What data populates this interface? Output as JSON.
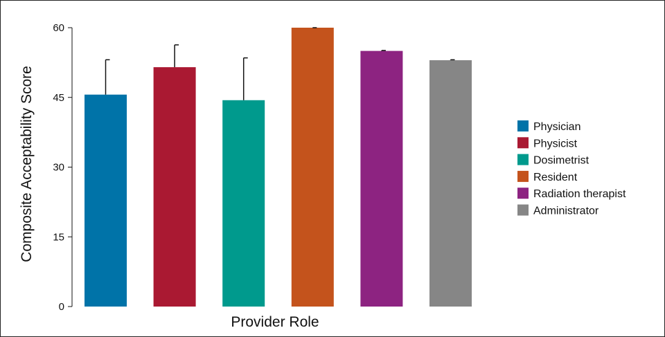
{
  "chart_data": {
    "type": "bar",
    "title": "",
    "xlabel": "Provider Role",
    "ylabel": "Composite Acceptability Score",
    "ylim": [
      0,
      60
    ],
    "yticks": [
      0,
      15,
      30,
      45,
      60
    ],
    "grid": false,
    "legend_position": "right",
    "categories": [
      "Physician",
      "Physicist",
      "Dosimetrist",
      "Resident",
      "Radiation therapist",
      "Administrator"
    ],
    "values": [
      45.6,
      51.5,
      44.4,
      60.0,
      55.0,
      53.0
    ],
    "error_upper": [
      53.1,
      56.3,
      53.5,
      60.0,
      55.1,
      53.1
    ],
    "colors": [
      "#0073a8",
      "#aa1932",
      "#009a8d",
      "#c4531c",
      "#8d2381",
      "#868686"
    ]
  }
}
